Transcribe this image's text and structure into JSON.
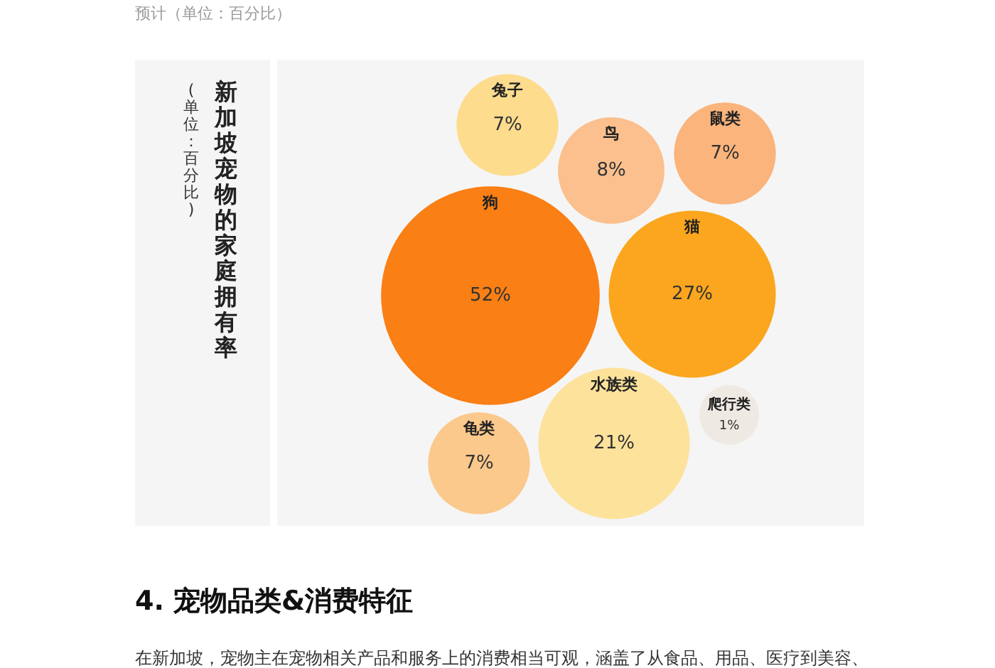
{
  "chart_data": {
    "type": "other",
    "title": "新加坡宠物的家庭拥有率",
    "subtitle": "(单位：百分比)",
    "categories": [
      "兔子",
      "鸟",
      "鼠类",
      "狗",
      "猫",
      "龟类",
      "水族类",
      "爬行类"
    ],
    "values": [
      7,
      8,
      7,
      52,
      27,
      7,
      21,
      1
    ],
    "value_labels": [
      "7%",
      "8%",
      "7%",
      "52%",
      "27%",
      "7%",
      "21%",
      "1%"
    ],
    "colors": [
      "#fddc8e",
      "#fbc08e",
      "#fbb47c",
      "#fa7f14",
      "#fba61e",
      "#fbc98c",
      "#fde29c",
      "#efe9e4"
    ],
    "annotations": [
      "预计（单位：百分比）",
      "4. 宠物品类&消费特征",
      "在新加坡，宠物主在宠物相关产品和服务上的消费相当可观，涵盖了从食品、用品、医疗到美容、"
    ]
  }
}
